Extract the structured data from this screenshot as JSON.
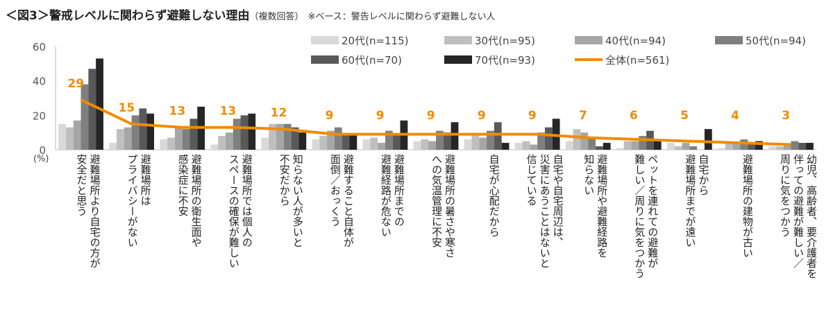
{
  "title": "＜図3＞警戒レベルに関わらず避難しない理由",
  "subtitle": "（複数回答）",
  "note": "※ベース：警告レベルに関わらず避難しない人",
  "chart_data": {
    "type": "bar",
    "ylabel": "(%)",
    "ylim": [
      0,
      60
    ],
    "yticks": [
      0,
      20,
      40,
      60
    ],
    "categories": [
      "避難場所より自宅の方が\n安全だと思う",
      "避難場所は\nプライバシーがない",
      "避難場所の衛生面や\n感染症に不安",
      "避難場所では個人の\nスペースの確保が難しい",
      "知らない人が多いと\n不安だから",
      "避難すること自体が\n面倒／おっくう",
      "避難場所までの\n避難経路が危ない",
      "避難場所の暑さや寒さ\nへの気温管理に不安",
      "自宅が心配だから",
      "自宅や自宅周辺は、\n災害にあうことはないと\n信じている",
      "避難場所や避難経路を\n知らない",
      "ペットを連れての避難が\n難しい／周りに気をつかう",
      "自宅から\n避難場所までが遠い",
      "避難場所の建物が古い",
      "幼児、高齢者、要介護者を\n伴っての避難が難しい／\n周りに気をつかう"
    ],
    "series": [
      {
        "name": "20代(n=115)",
        "color": "#d9d9d9",
        "values": [
          15,
          4,
          6,
          3,
          7,
          6,
          6,
          5,
          6,
          4,
          5,
          1,
          4,
          1,
          2
        ]
      },
      {
        "name": "30代(n=95)",
        "color": "#bfbfbf",
        "values": [
          13,
          12,
          7,
          8,
          15,
          8,
          7,
          6,
          9,
          5,
          12,
          5,
          2,
          4,
          2
        ]
      },
      {
        "name": "40代(n=94)",
        "color": "#a6a6a6",
        "values": [
          17,
          13,
          13,
          10,
          15,
          11,
          4,
          5,
          7,
          3,
          10,
          5,
          4,
          4,
          3
        ]
      },
      {
        "name": "50代(n=94)",
        "color": "#7f7f7f",
        "values": [
          38,
          20,
          12,
          18,
          15,
          13,
          11,
          11,
          11,
          10,
          7,
          8,
          2,
          6,
          5
        ]
      },
      {
        "name": "60代(n=70)",
        "color": "#595959",
        "values": [
          47,
          24,
          18,
          20,
          13,
          9,
          9,
          10,
          16,
          13,
          2,
          11,
          0,
          4,
          4
        ]
      },
      {
        "name": "70代(n=93)",
        "color": "#262626",
        "values": [
          53,
          21,
          25,
          21,
          10,
          9,
          17,
          16,
          4,
          18,
          4,
          5,
          12,
          5,
          4
        ]
      }
    ],
    "line": {
      "name": "全体(n=561)",
      "color": "#f08c00",
      "values": [
        29,
        15,
        13,
        13,
        12,
        9,
        9,
        9,
        9,
        9,
        7,
        6,
        5,
        4,
        3
      ]
    }
  }
}
